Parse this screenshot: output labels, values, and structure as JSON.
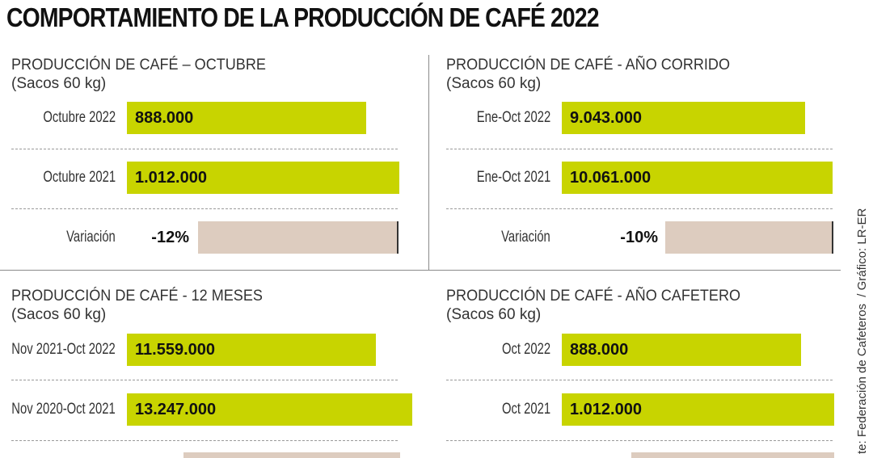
{
  "title": "COMPORTAMIENTO DE LA PRODUCCIÓN DE CAFÉ 2022",
  "source": {
    "partial_source": "te: Federación de Cafeteros",
    "credit": "/ Gráfico: LR-ER"
  },
  "chart_data": [
    {
      "type": "bar",
      "title": "PRODUCCIÓN DE CAFÉ – OCTUBRE",
      "unit": "(Sacos 60 kg)",
      "categories": [
        "Octubre 2022",
        "Octubre 2021"
      ],
      "values": [
        888000,
        1012000
      ],
      "value_labels": [
        "888.000",
        "1.012.000"
      ],
      "variation": {
        "label": "Variación",
        "value": -12,
        "value_label": "-12%"
      },
      "colors": {
        "bar": "#c8d400",
        "variation": "#ddccbf"
      }
    },
    {
      "type": "bar",
      "title": "PRODUCCIÓN DE CAFÉ - AÑO CORRIDO",
      "unit": "(Sacos 60 kg)",
      "categories": [
        "Ene-Oct 2022",
        "Ene-Oct 2021"
      ],
      "values": [
        9043000,
        10061000
      ],
      "value_labels": [
        "9.043.000",
        "10.061.000"
      ],
      "variation": {
        "label": "Variación",
        "value": -10,
        "value_label": "-10%"
      },
      "colors": {
        "bar": "#c8d400",
        "variation": "#ddccbf"
      }
    },
    {
      "type": "bar",
      "title": "PRODUCCIÓN DE CAFÉ - 12 MESES",
      "unit": "(Sacos 60 kg)",
      "categories": [
        "Nov 2021-Oct 2022",
        "Nov 2020-Oct 2021"
      ],
      "values": [
        11559000,
        13247000
      ],
      "value_labels": [
        "11.559.000",
        "13.247.000"
      ],
      "colors": {
        "bar": "#c8d400",
        "variation": "#ddccbf"
      }
    },
    {
      "type": "bar",
      "title": "PRODUCCIÓN DE CAFÉ - AÑO CAFETERO",
      "unit": "(Sacos 60 kg)",
      "categories": [
        "Oct 2022",
        "Oct 2021"
      ],
      "values": [
        888000,
        1012000
      ],
      "value_labels": [
        "888.000",
        "1.012.000"
      ],
      "colors": {
        "bar": "#c8d400",
        "variation": "#ddccbf"
      }
    }
  ]
}
